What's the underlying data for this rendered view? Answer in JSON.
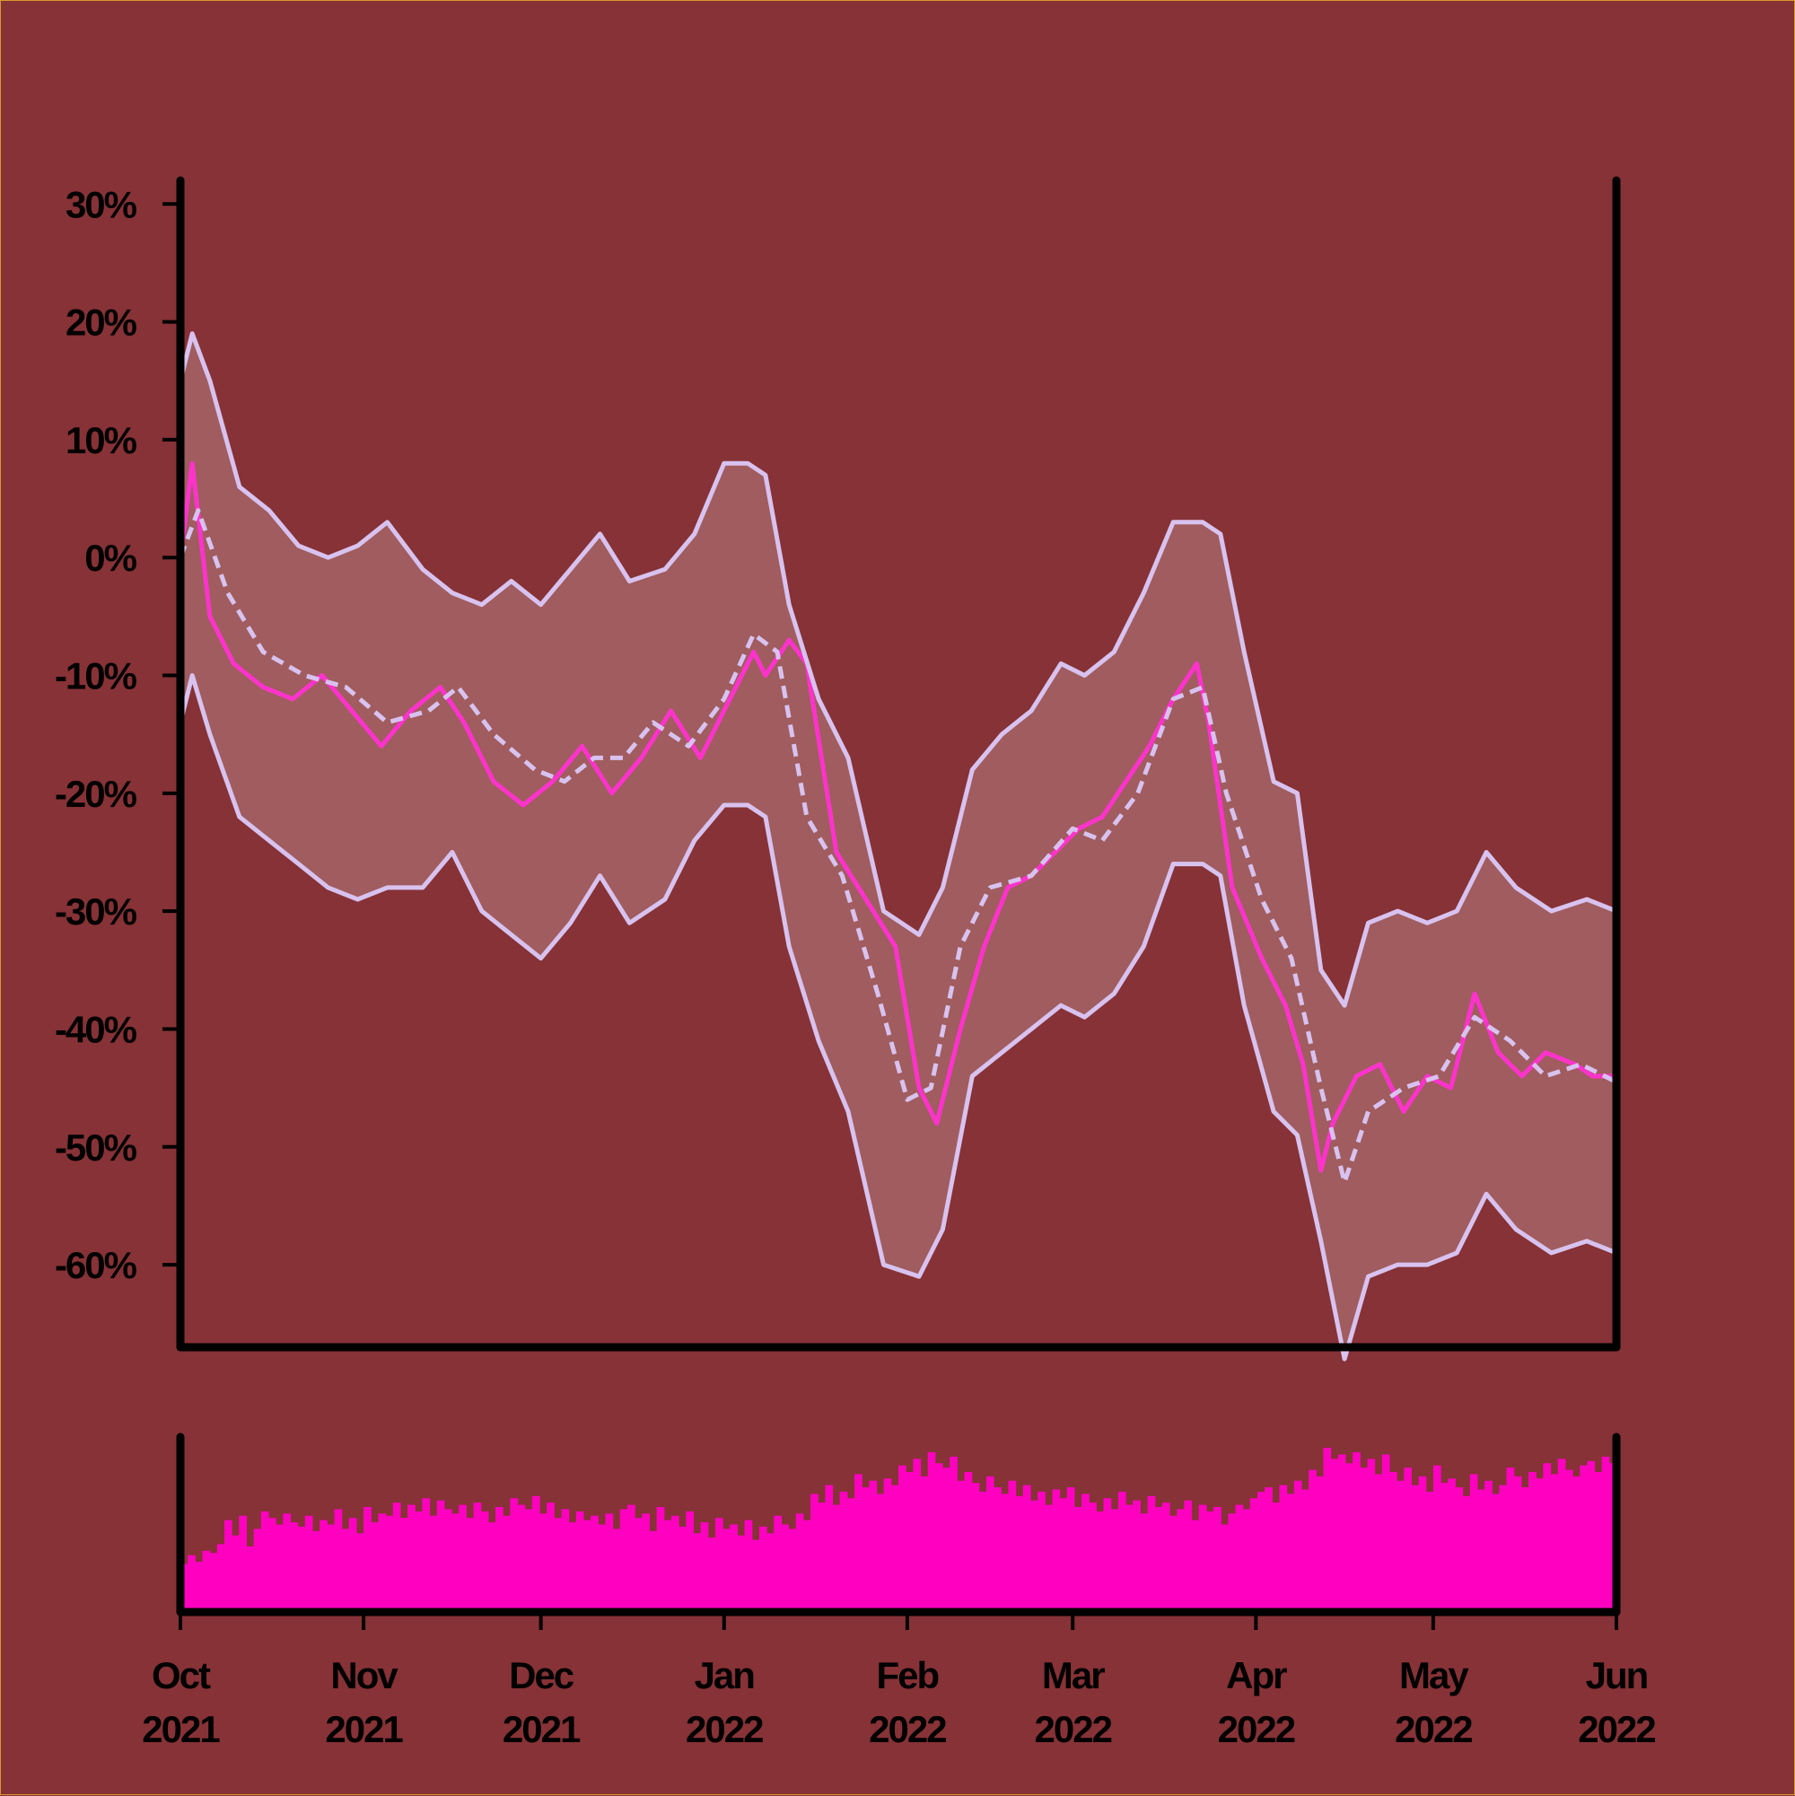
{
  "colors": {
    "background": "#863236",
    "band_fill": "#a05c5e",
    "band_line": "#d8c2ef",
    "price_line": "#ff33cc",
    "volume_bar": "#ff00c0",
    "axis": "#000000"
  },
  "chart_data": {
    "type": "line",
    "title": "",
    "xlabel": "",
    "ylabel": "",
    "ylim": [
      -67,
      32
    ],
    "xlim": [
      "2021-10-01",
      "2022-06-01"
    ],
    "y_ticks": [
      30,
      20,
      10,
      0,
      -10,
      -20,
      -30,
      -40,
      -50,
      -60
    ],
    "y_tick_labels": [
      "30%",
      "20%",
      "10%",
      "0%",
      "-10%",
      "-20%",
      "-30%",
      "-40%",
      "-50%",
      "-60%"
    ],
    "x_ticks": [
      {
        "date": "2021-10-01",
        "month": "Oct",
        "year": "2021"
      },
      {
        "date": "2021-11-01",
        "month": "Nov",
        "year": "2021"
      },
      {
        "date": "2021-12-01",
        "month": "Dec",
        "year": "2021"
      },
      {
        "date": "2022-01-01",
        "month": "Jan",
        "year": "2022"
      },
      {
        "date": "2022-02-01",
        "month": "Feb",
        "year": "2022"
      },
      {
        "date": "2022-03-01",
        "month": "Mar",
        "year": "2022"
      },
      {
        "date": "2022-04-01",
        "month": "Apr",
        "year": "2022"
      },
      {
        "date": "2022-05-01",
        "month": "May",
        "year": "2022"
      },
      {
        "date": "2022-06-01",
        "month": "Jun",
        "year": "2022"
      }
    ],
    "grid": false,
    "series": [
      {
        "role": "price",
        "style": "solid",
        "x": [
          "2021-10-01",
          "2021-10-03",
          "2021-10-06",
          "2021-10-10",
          "2021-10-15",
          "2021-10-20",
          "2021-10-25",
          "2021-10-30",
          "2021-11-04",
          "2021-11-09",
          "2021-11-14",
          "2021-11-18",
          "2021-11-23",
          "2021-11-28",
          "2021-12-03",
          "2021-12-08",
          "2021-12-13",
          "2021-12-18",
          "2021-12-23",
          "2021-12-28",
          "2022-01-02",
          "2022-01-06",
          "2022-01-08",
          "2022-01-12",
          "2022-01-15",
          "2022-01-20",
          "2022-01-25",
          "2022-01-30",
          "2022-02-03",
          "2022-02-06",
          "2022-02-10",
          "2022-02-14",
          "2022-02-18",
          "2022-02-22",
          "2022-02-26",
          "2022-03-02",
          "2022-03-06",
          "2022-03-10",
          "2022-03-14",
          "2022-03-18",
          "2022-03-22",
          "2022-03-24",
          "2022-03-28",
          "2022-04-02",
          "2022-04-06",
          "2022-04-09",
          "2022-04-12",
          "2022-04-14",
          "2022-04-18",
          "2022-04-22",
          "2022-04-26",
          "2022-04-30",
          "2022-05-04",
          "2022-05-08",
          "2022-05-12",
          "2022-05-16",
          "2022-05-20",
          "2022-05-25",
          "2022-05-28",
          "2022-06-01"
        ],
        "values": [
          0,
          8,
          -5,
          -9,
          -11,
          -12,
          -10,
          -13,
          -16,
          -13,
          -11,
          -14,
          -19,
          -21,
          -19,
          -16,
          -20,
          -17,
          -13,
          -17,
          -12,
          -8,
          -10,
          -7,
          -9,
          -25,
          -29,
          -33,
          -45,
          -48,
          -40,
          -33,
          -28,
          -27,
          -25,
          -23,
          -22,
          -19,
          -16,
          -12,
          -9,
          -14,
          -28,
          -34,
          -38,
          -43,
          -52,
          -48,
          -44,
          -43,
          -47,
          -44,
          -45,
          -37,
          -42,
          -44,
          -42,
          -43,
          -44,
          -44
        ]
      },
      {
        "role": "moving-average",
        "style": "dashed",
        "x": [
          "2021-10-01",
          "2021-10-04",
          "2021-10-09",
          "2021-10-15",
          "2021-10-22",
          "2021-10-29",
          "2021-11-05",
          "2021-11-12",
          "2021-11-17",
          "2021-11-23",
          "2021-11-30",
          "2021-12-05",
          "2021-12-10",
          "2021-12-15",
          "2021-12-20",
          "2021-12-26",
          "2022-01-01",
          "2022-01-06",
          "2022-01-10",
          "2022-01-15",
          "2022-01-21",
          "2022-01-27",
          "2022-02-01",
          "2022-02-05",
          "2022-02-10",
          "2022-02-15",
          "2022-02-22",
          "2022-03-01",
          "2022-03-06",
          "2022-03-12",
          "2022-03-18",
          "2022-03-23",
          "2022-03-27",
          "2022-04-02",
          "2022-04-07",
          "2022-04-12",
          "2022-04-16",
          "2022-04-20",
          "2022-04-26",
          "2022-05-02",
          "2022-05-08",
          "2022-05-14",
          "2022-05-20",
          "2022-05-26",
          "2022-06-01"
        ],
        "values": [
          0,
          4,
          -3,
          -8,
          -10,
          -11,
          -14,
          -13,
          -11,
          -15,
          -18,
          -19,
          -17,
          -17,
          -14,
          -16,
          -12,
          -6.5,
          -8,
          -22,
          -27,
          -37,
          -46,
          -45,
          -33,
          -28,
          -27,
          -23,
          -24,
          -20,
          -12,
          -11,
          -20,
          -29,
          -34,
          -45,
          -53,
          -47,
          -45,
          -44,
          -39,
          -41,
          -44,
          -43,
          -44.5
        ]
      },
      {
        "role": "upper-band",
        "style": "solid",
        "x": [
          "2021-10-01",
          "2021-10-03",
          "2021-10-06",
          "2021-10-11",
          "2021-10-16",
          "2021-10-21",
          "2021-10-26",
          "2021-10-31",
          "2021-11-05",
          "2021-11-11",
          "2021-11-16",
          "2021-11-21",
          "2021-11-26",
          "2021-12-01",
          "2021-12-06",
          "2021-12-11",
          "2021-12-16",
          "2021-12-22",
          "2021-12-27",
          "2022-01-01",
          "2022-01-05",
          "2022-01-08",
          "2022-01-12",
          "2022-01-17",
          "2022-01-22",
          "2022-01-28",
          "2022-02-03",
          "2022-02-07",
          "2022-02-12",
          "2022-02-17",
          "2022-02-22",
          "2022-02-27",
          "2022-03-03",
          "2022-03-08",
          "2022-03-13",
          "2022-03-18",
          "2022-03-23",
          "2022-03-26",
          "2022-03-30",
          "2022-04-04",
          "2022-04-08",
          "2022-04-12",
          "2022-04-16",
          "2022-04-20",
          "2022-04-25",
          "2022-04-30",
          "2022-05-05",
          "2022-05-10",
          "2022-05-15",
          "2022-05-21",
          "2022-05-27",
          "2022-06-01"
        ],
        "values": [
          15,
          19,
          15,
          6,
          4,
          1,
          0,
          1,
          3,
          -1,
          -3,
          -4,
          -2,
          -4,
          -1,
          2,
          -2,
          -1,
          2,
          8,
          8,
          7,
          -4,
          -12,
          -17,
          -30,
          -32,
          -28,
          -18,
          -15,
          -13,
          -9,
          -10,
          -8,
          -3,
          3,
          3,
          2,
          -8,
          -19,
          -20,
          -35,
          -38,
          -31,
          -30,
          -31,
          -30,
          -25,
          -28,
          -30,
          -29,
          -30
        ]
      },
      {
        "role": "lower-band",
        "style": "solid",
        "x": [
          "2021-10-01",
          "2021-10-03",
          "2021-10-06",
          "2021-10-11",
          "2021-10-16",
          "2021-10-21",
          "2021-10-26",
          "2021-10-31",
          "2021-11-05",
          "2021-11-11",
          "2021-11-16",
          "2021-11-21",
          "2021-11-26",
          "2021-12-01",
          "2021-12-06",
          "2021-12-11",
          "2021-12-16",
          "2021-12-22",
          "2021-12-27",
          "2022-01-01",
          "2022-01-05",
          "2022-01-08",
          "2022-01-12",
          "2022-01-17",
          "2022-01-22",
          "2022-01-28",
          "2022-02-03",
          "2022-02-07",
          "2022-02-12",
          "2022-02-17",
          "2022-02-22",
          "2022-02-27",
          "2022-03-03",
          "2022-03-08",
          "2022-03-13",
          "2022-03-18",
          "2022-03-23",
          "2022-03-26",
          "2022-03-30",
          "2022-04-04",
          "2022-04-08",
          "2022-04-12",
          "2022-04-16",
          "2022-04-20",
          "2022-04-25",
          "2022-04-30",
          "2022-05-05",
          "2022-05-10",
          "2022-05-15",
          "2022-05-21",
          "2022-05-27",
          "2022-06-01"
        ],
        "values": [
          -14,
          -10,
          -15,
          -22,
          -24,
          -26,
          -28,
          -29,
          -28,
          -28,
          -25,
          -30,
          -32,
          -34,
          -31,
          -27,
          -31,
          -29,
          -24,
          -21,
          -21,
          -22,
          -33,
          -41,
          -47,
          -60,
          -61,
          -57,
          -44,
          -42,
          -40,
          -38,
          -39,
          -37,
          -33,
          -26,
          -26,
          -27,
          -38,
          -47,
          -49,
          -58,
          -68,
          -61,
          -60,
          -60,
          -59,
          -54,
          -57,
          -59,
          -58,
          -59
        ]
      }
    ],
    "volume": {
      "x_start": "2021-10-01",
      "x_end": "2022-06-01",
      "values": [
        22,
        26,
        23,
        28,
        27,
        31,
        42,
        35,
        44,
        30,
        38,
        46,
        43,
        40,
        45,
        41,
        39,
        44,
        37,
        42,
        40,
        47,
        38,
        43,
        36,
        48,
        41,
        45,
        44,
        50,
        43,
        49,
        46,
        52,
        44,
        51,
        47,
        45,
        49,
        43,
        50,
        46,
        41,
        48,
        44,
        52,
        49,
        47,
        53,
        45,
        50,
        43,
        47,
        41,
        46,
        42,
        44,
        40,
        45,
        38,
        47,
        49,
        43,
        45,
        37,
        48,
        42,
        44,
        39,
        46,
        36,
        41,
        34,
        43,
        38,
        40,
        35,
        42,
        33,
        39,
        36,
        44,
        40,
        38,
        45,
        42,
        54,
        50,
        58,
        49,
        55,
        52,
        63,
        57,
        60,
        54,
        61,
        58,
        67,
        64,
        70,
        62,
        73,
        68,
        66,
        71,
        60,
        64,
        59,
        55,
        62,
        57,
        54,
        60,
        53,
        58,
        51,
        55,
        49,
        56,
        52,
        57,
        48,
        54,
        50,
        46,
        52,
        47,
        55,
        49,
        51,
        45,
        53,
        48,
        50,
        44,
        47,
        51,
        42,
        49,
        46,
        48,
        40,
        45,
        49,
        47,
        52,
        55,
        57,
        50,
        58,
        54,
        60,
        56,
        65,
        62,
        75,
        70,
        72,
        68,
        73,
        66,
        70,
        63,
        72,
        64,
        60,
        66,
        58,
        62,
        55,
        67,
        59,
        61,
        57,
        53,
        63,
        56,
        60,
        54,
        58,
        66,
        62,
        57,
        64,
        61,
        68,
        63,
        70,
        65,
        62,
        67,
        69,
        64,
        71,
        68
      ]
    }
  }
}
